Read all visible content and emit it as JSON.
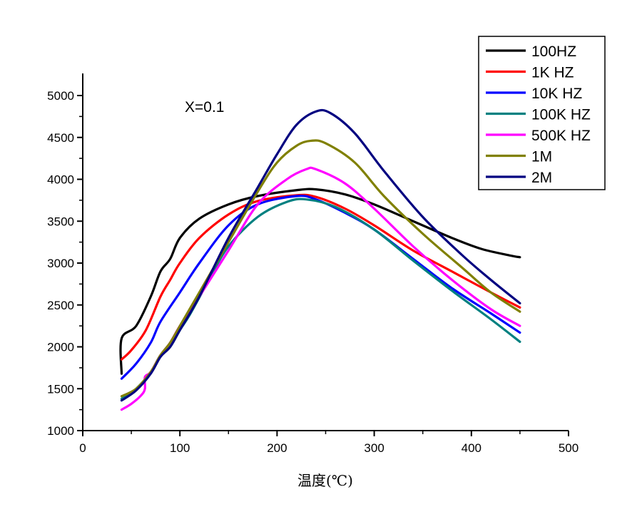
{
  "chart_data": {
    "type": "line",
    "title": "",
    "annotation": "X=0.1",
    "xlabel": "温度(℃)",
    "ylabel": "",
    "xlim": [
      0,
      500
    ],
    "ylim": [
      1000,
      5000
    ],
    "x_ticks": [
      0,
      100,
      200,
      300,
      400,
      500
    ],
    "y_ticks": [
      1000,
      1500,
      2000,
      2500,
      3000,
      3500,
      4000,
      4500,
      5000
    ],
    "grid": false,
    "legend_position": "top-right",
    "series": [
      {
        "name": "100HZ",
        "color": "#000000",
        "points": [
          [
            40,
            1680
          ],
          [
            40,
            2100
          ],
          [
            55,
            2250
          ],
          [
            70,
            2600
          ],
          [
            80,
            2900
          ],
          [
            90,
            3050
          ],
          [
            100,
            3300
          ],
          [
            120,
            3530
          ],
          [
            150,
            3700
          ],
          [
            180,
            3800
          ],
          [
            220,
            3870
          ],
          [
            240,
            3880
          ],
          [
            270,
            3820
          ],
          [
            300,
            3700
          ],
          [
            340,
            3500
          ],
          [
            380,
            3300
          ],
          [
            410,
            3170
          ],
          [
            440,
            3090
          ],
          [
            450,
            3070
          ]
        ]
      },
      {
        "name": "1K HZ",
        "color": "#ff0000",
        "points": [
          [
            40,
            1850
          ],
          [
            50,
            1960
          ],
          [
            65,
            2200
          ],
          [
            80,
            2600
          ],
          [
            90,
            2800
          ],
          [
            100,
            3000
          ],
          [
            120,
            3300
          ],
          [
            150,
            3580
          ],
          [
            180,
            3740
          ],
          [
            220,
            3810
          ],
          [
            240,
            3790
          ],
          [
            270,
            3650
          ],
          [
            300,
            3450
          ],
          [
            340,
            3150
          ],
          [
            380,
            2900
          ],
          [
            420,
            2650
          ],
          [
            450,
            2470
          ]
        ]
      },
      {
        "name": "10K HZ",
        "color": "#0000ff",
        "points": [
          [
            40,
            1620
          ],
          [
            55,
            1800
          ],
          [
            70,
            2050
          ],
          [
            80,
            2300
          ],
          [
            100,
            2650
          ],
          [
            120,
            3000
          ],
          [
            150,
            3450
          ],
          [
            180,
            3700
          ],
          [
            220,
            3800
          ],
          [
            240,
            3760
          ],
          [
            270,
            3600
          ],
          [
            300,
            3400
          ],
          [
            340,
            3050
          ],
          [
            380,
            2700
          ],
          [
            420,
            2400
          ],
          [
            450,
            2170
          ]
        ]
      },
      {
        "name": "100K HZ",
        "color": "#008080",
        "points": [
          [
            40,
            1380
          ],
          [
            55,
            1500
          ],
          [
            70,
            1700
          ],
          [
            80,
            1900
          ],
          [
            90,
            2000
          ],
          [
            100,
            2200
          ],
          [
            110,
            2380
          ],
          [
            130,
            2800
          ],
          [
            150,
            3200
          ],
          [
            180,
            3550
          ],
          [
            210,
            3730
          ],
          [
            230,
            3760
          ],
          [
            260,
            3670
          ],
          [
            300,
            3400
          ],
          [
            340,
            3030
          ],
          [
            380,
            2670
          ],
          [
            420,
            2330
          ],
          [
            450,
            2060
          ]
        ]
      },
      {
        "name": "500K HZ",
        "color": "#ff00ff",
        "points": [
          [
            40,
            1250
          ],
          [
            50,
            1320
          ],
          [
            60,
            1420
          ],
          [
            64,
            1500
          ],
          [
            64,
            1640
          ],
          [
            70,
            1700
          ],
          [
            80,
            1900
          ],
          [
            90,
            2050
          ],
          [
            100,
            2250
          ],
          [
            120,
            2600
          ],
          [
            150,
            3150
          ],
          [
            180,
            3700
          ],
          [
            210,
            4000
          ],
          [
            230,
            4120
          ],
          [
            240,
            4120
          ],
          [
            270,
            3950
          ],
          [
            300,
            3650
          ],
          [
            340,
            3200
          ],
          [
            380,
            2800
          ],
          [
            420,
            2450
          ],
          [
            450,
            2250
          ]
        ]
      },
      {
        "name": "1M",
        "color": "#808000",
        "points": [
          [
            40,
            1410
          ],
          [
            55,
            1500
          ],
          [
            70,
            1700
          ],
          [
            80,
            1900
          ],
          [
            90,
            2050
          ],
          [
            100,
            2250
          ],
          [
            120,
            2650
          ],
          [
            150,
            3250
          ],
          [
            180,
            3850
          ],
          [
            200,
            4200
          ],
          [
            220,
            4400
          ],
          [
            235,
            4460
          ],
          [
            250,
            4430
          ],
          [
            280,
            4200
          ],
          [
            310,
            3800
          ],
          [
            350,
            3350
          ],
          [
            390,
            2950
          ],
          [
            420,
            2650
          ],
          [
            450,
            2420
          ]
        ]
      },
      {
        "name": "2M",
        "color": "#000080",
        "points": [
          [
            40,
            1360
          ],
          [
            55,
            1480
          ],
          [
            70,
            1680
          ],
          [
            80,
            1880
          ],
          [
            90,
            2000
          ],
          [
            100,
            2200
          ],
          [
            120,
            2600
          ],
          [
            150,
            3300
          ],
          [
            180,
            3900
          ],
          [
            200,
            4300
          ],
          [
            220,
            4650
          ],
          [
            240,
            4810
          ],
          [
            255,
            4790
          ],
          [
            280,
            4550
          ],
          [
            310,
            4100
          ],
          [
            350,
            3550
          ],
          [
            390,
            3100
          ],
          [
            420,
            2800
          ],
          [
            450,
            2520
          ]
        ]
      }
    ]
  }
}
